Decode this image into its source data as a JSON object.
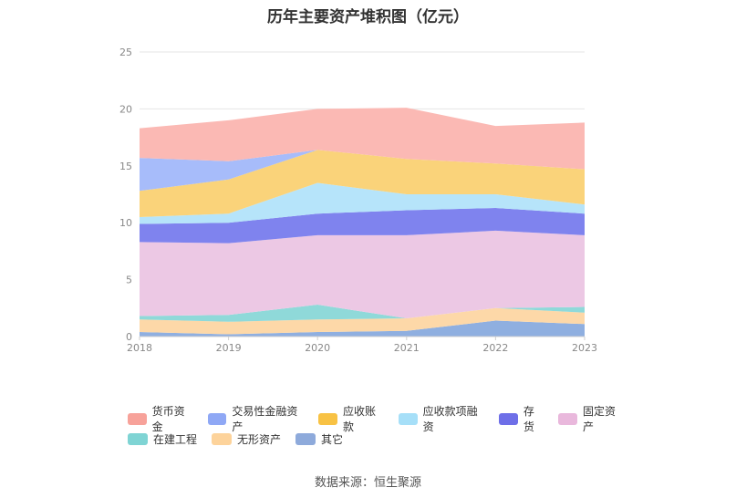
{
  "chart_data": {
    "type": "area",
    "stacked": true,
    "title": "历年主要资产堆积图（亿元）",
    "x": [
      "2018",
      "2019",
      "2020",
      "2021",
      "2022",
      "2023"
    ],
    "y_ticks": [
      "0",
      "5",
      "10",
      "15",
      "20",
      "25"
    ],
    "ylim": [
      0,
      25
    ],
    "grid": true,
    "legend_position": "bottom",
    "series": [
      {
        "name": "其它",
        "color": "#8fafe0",
        "values": [
          0.4,
          0.2,
          0.4,
          0.5,
          1.4,
          1.1
        ]
      },
      {
        "name": "无形资产",
        "color": "#fdd8a8",
        "values": [
          1.1,
          1.1,
          1.1,
          1.1,
          1.1,
          1.0
        ]
      },
      {
        "name": "在建工程",
        "color": "#8fd9d9",
        "values": [
          0.3,
          0.6,
          1.3,
          0.0,
          0.0,
          0.5
        ]
      },
      {
        "name": "固定资产",
        "color": "#ecc8e4",
        "values": [
          6.5,
          6.3,
          6.1,
          7.3,
          6.8,
          6.3
        ]
      },
      {
        "name": "存货",
        "color": "#7f83ee",
        "values": [
          1.6,
          1.8,
          1.9,
          2.2,
          2.0,
          1.9
        ]
      },
      {
        "name": "应收款项融资",
        "color": "#b6e4fa",
        "values": [
          0.6,
          0.8,
          2.7,
          1.4,
          1.2,
          0.8
        ]
      },
      {
        "name": "应收账款",
        "color": "#fad37a",
        "values": [
          2.3,
          3.0,
          2.9,
          3.1,
          2.7,
          3.1
        ]
      },
      {
        "name": "交易性金融资产",
        "color": "#a7bcfa",
        "values": [
          2.9,
          1.6,
          0.0,
          0.0,
          0.0,
          0.0
        ]
      },
      {
        "name": "货币资金",
        "color": "#fbb9b4",
        "values": [
          2.6,
          3.6,
          3.6,
          4.5,
          3.3,
          4.1
        ]
      }
    ]
  },
  "legend": [
    {
      "label": "货币资金",
      "color": "#f7a29a"
    },
    {
      "label": "交易性金融资产",
      "color": "#8fa8f5"
    },
    {
      "label": "应收账款",
      "color": "#f8c244"
    },
    {
      "label": "应收款项融资",
      "color": "#a6dff8"
    },
    {
      "label": "存货",
      "color": "#6e6fe8"
    },
    {
      "label": "固定资产",
      "color": "#e9b8dc"
    },
    {
      "label": "在建工程",
      "color": "#7fd4d4"
    },
    {
      "label": "无形资产",
      "color": "#fdd39b"
    },
    {
      "label": "其它",
      "color": "#8eaadb"
    }
  ],
  "source": "数据来源：恒生聚源"
}
